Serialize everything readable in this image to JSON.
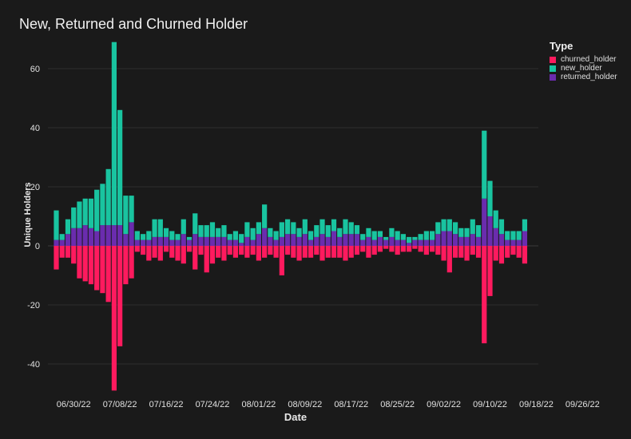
{
  "chart_data": {
    "type": "bar",
    "stacked": true,
    "title": "New, Returned and Churned Holder",
    "xlabel": "Date",
    "ylabel": "Unique Holders",
    "ylim": [
      -50,
      70
    ],
    "yticks": [
      -40,
      -20,
      0,
      20,
      40,
      60
    ],
    "grid": true,
    "legend": {
      "title": "Type",
      "placement": "top-right",
      "entries": [
        "churned_holder",
        "new_holder",
        "returned_holder"
      ]
    },
    "x_start": "2022-06-27",
    "x_ticks": [
      {
        "date": "2022-06-30",
        "label": "06/30/22"
      },
      {
        "date": "2022-07-08",
        "label": "07/08/22"
      },
      {
        "date": "2022-07-16",
        "label": "07/16/22"
      },
      {
        "date": "2022-07-24",
        "label": "07/24/22"
      },
      {
        "date": "2022-08-01",
        "label": "08/01/22"
      },
      {
        "date": "2022-08-09",
        "label": "08/09/22"
      },
      {
        "date": "2022-08-17",
        "label": "08/17/22"
      },
      {
        "date": "2022-08-25",
        "label": "08/25/22"
      },
      {
        "date": "2022-09-02",
        "label": "09/02/22"
      },
      {
        "date": "2022-09-10",
        "label": "09/10/22"
      },
      {
        "date": "2022-09-18",
        "label": "09/18/22"
      },
      {
        "date": "2022-09-26",
        "label": "09/26/22"
      }
    ],
    "series": [
      {
        "name": "churned_holder",
        "color": "#ff1a5e",
        "values": [
          -8,
          -4,
          -4,
          -6,
          -11,
          -12,
          -13,
          -15,
          -16,
          -19,
          -49,
          -34,
          -13,
          -11,
          -2,
          -3,
          -5,
          -4,
          -5,
          -2,
          -4,
          -5,
          -6,
          -2,
          -8,
          -3,
          -9,
          -6,
          -4,
          -5,
          -3,
          -4,
          -3,
          -4,
          -3,
          -5,
          -4,
          -3,
          -4,
          -10,
          -3,
          -4,
          -5,
          -4,
          -4,
          -3,
          -5,
          -4,
          -4,
          -4,
          -5,
          -4,
          -3,
          -2,
          -4,
          -3,
          -2,
          -1,
          -2,
          -3,
          -2,
          -2,
          -1,
          -2,
          -3,
          -2,
          -3,
          -5,
          -9,
          -4,
          -4,
          -5,
          -3,
          -4,
          -33,
          -17,
          -5,
          -6,
          -4,
          -3,
          -4,
          -6
        ]
      },
      {
        "name": "new_holder",
        "color": "#19c4a0",
        "values": [
          10,
          2,
          5,
          7,
          9,
          9,
          10,
          14,
          14,
          19,
          62,
          39,
          13,
          9,
          3,
          2,
          3,
          6,
          6,
          3,
          3,
          2,
          5,
          1,
          7,
          4,
          4,
          5,
          3,
          4,
          2,
          3,
          3,
          5,
          4,
          4,
          8,
          3,
          3,
          5,
          5,
          4,
          3,
          5,
          3,
          4,
          5,
          4,
          4,
          3,
          5,
          4,
          3,
          2,
          3,
          3,
          2,
          1,
          3,
          3,
          2,
          2,
          1,
          2,
          3,
          3,
          4,
          4,
          4,
          4,
          3,
          3,
          5,
          4,
          23,
          12,
          6,
          5,
          3,
          3,
          3,
          4
        ]
      },
      {
        "name": "returned_holder",
        "color": "#6a2cae",
        "values": [
          2,
          2,
          4,
          6,
          6,
          7,
          6,
          5,
          7,
          7,
          7,
          7,
          4,
          8,
          2,
          2,
          2,
          3,
          3,
          3,
          2,
          2,
          4,
          2,
          4,
          3,
          3,
          3,
          3,
          3,
          2,
          2,
          1,
          3,
          2,
          4,
          6,
          3,
          2,
          3,
          4,
          4,
          3,
          4,
          2,
          3,
          4,
          3,
          5,
          3,
          4,
          4,
          4,
          2,
          3,
          2,
          3,
          2,
          3,
          2,
          2,
          1,
          2,
          2,
          2,
          2,
          4,
          5,
          5,
          4,
          3,
          3,
          4,
          3,
          16,
          10,
          6,
          4,
          2,
          2,
          2,
          5
        ]
      }
    ]
  }
}
